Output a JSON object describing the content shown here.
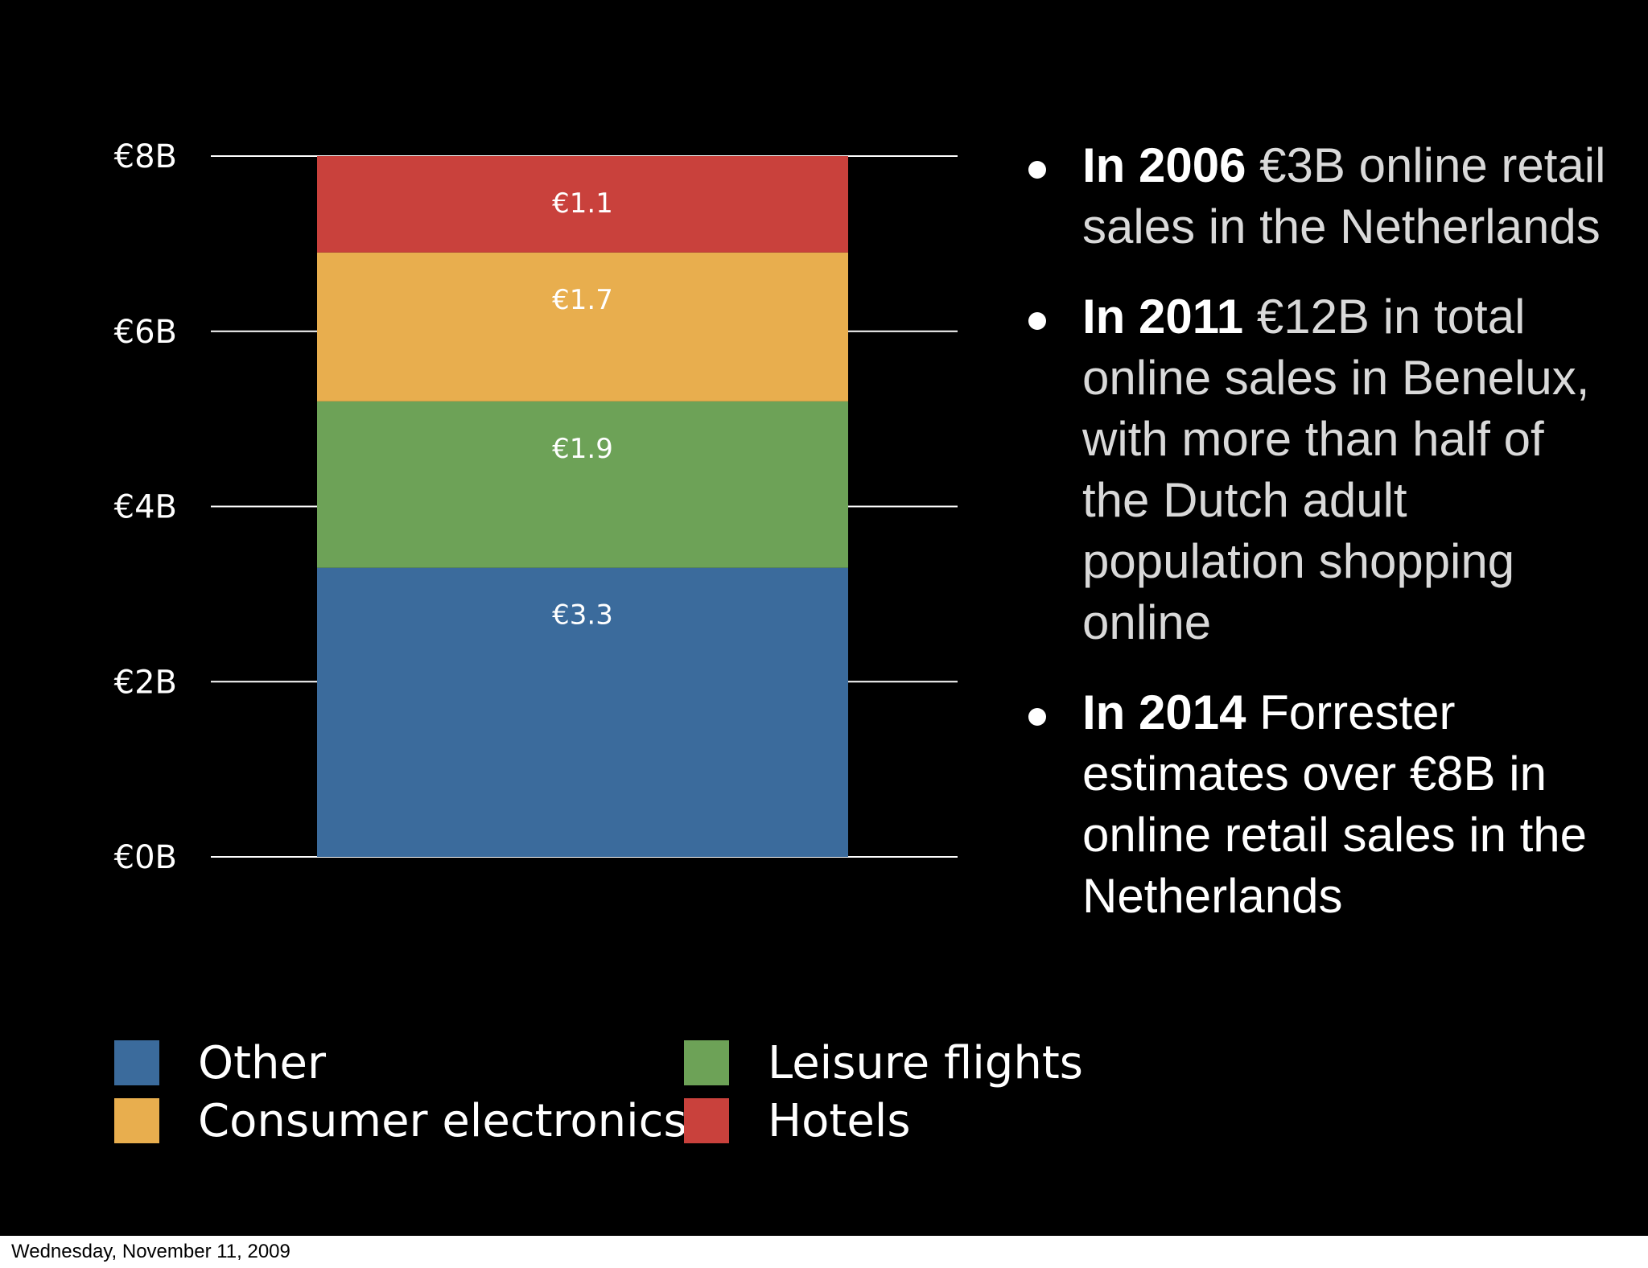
{
  "chart_data": {
    "type": "bar",
    "stacked": true,
    "categories": [
      ""
    ],
    "series": [
      {
        "name": "Other",
        "values": [
          3.3
        ],
        "label": "€3.3",
        "color": "#3b6b9c"
      },
      {
        "name": "Leisure flights",
        "values": [
          1.9
        ],
        "label": "€1.9",
        "color": "#6da257"
      },
      {
        "name": "Consumer electronics",
        "values": [
          1.7
        ],
        "label": "€1.7",
        "color": "#e8ae4e"
      },
      {
        "name": "Hotels",
        "values": [
          1.1
        ],
        "label": "€1.1",
        "color": "#c9413c"
      }
    ],
    "y_ticks": [
      0,
      2,
      4,
      6,
      8
    ],
    "y_tick_labels": [
      "€0B",
      "€2B",
      "€4B",
      "€6B",
      "€8B"
    ],
    "ylim": [
      0,
      8
    ],
    "grid": true,
    "title": "",
    "xlabel": "",
    "ylabel": ""
  },
  "legend": {
    "items": [
      {
        "label": "Other",
        "color": "#3b6b9c"
      },
      {
        "label": "Leisure flights",
        "color": "#6da257"
      },
      {
        "label": "Consumer electronics",
        "color": "#e8ae4e"
      },
      {
        "label": "Hotels",
        "color": "#c9413c"
      }
    ]
  },
  "bullets": [
    {
      "year": "In 2006",
      "text": "€3B online retail sales in the Netherlands",
      "style": "light"
    },
    {
      "year": "In 2011",
      "text": "€12B in total online sales in Benelux, with more than half of the Dutch adult population shopping online",
      "style": "light"
    },
    {
      "year": "In 2014",
      "text": "Forrester estimates over €8B in online retail sales in the Netherlands",
      "style": "regular"
    }
  ],
  "footer": {
    "date": "Wednesday, November 11, 2009"
  }
}
